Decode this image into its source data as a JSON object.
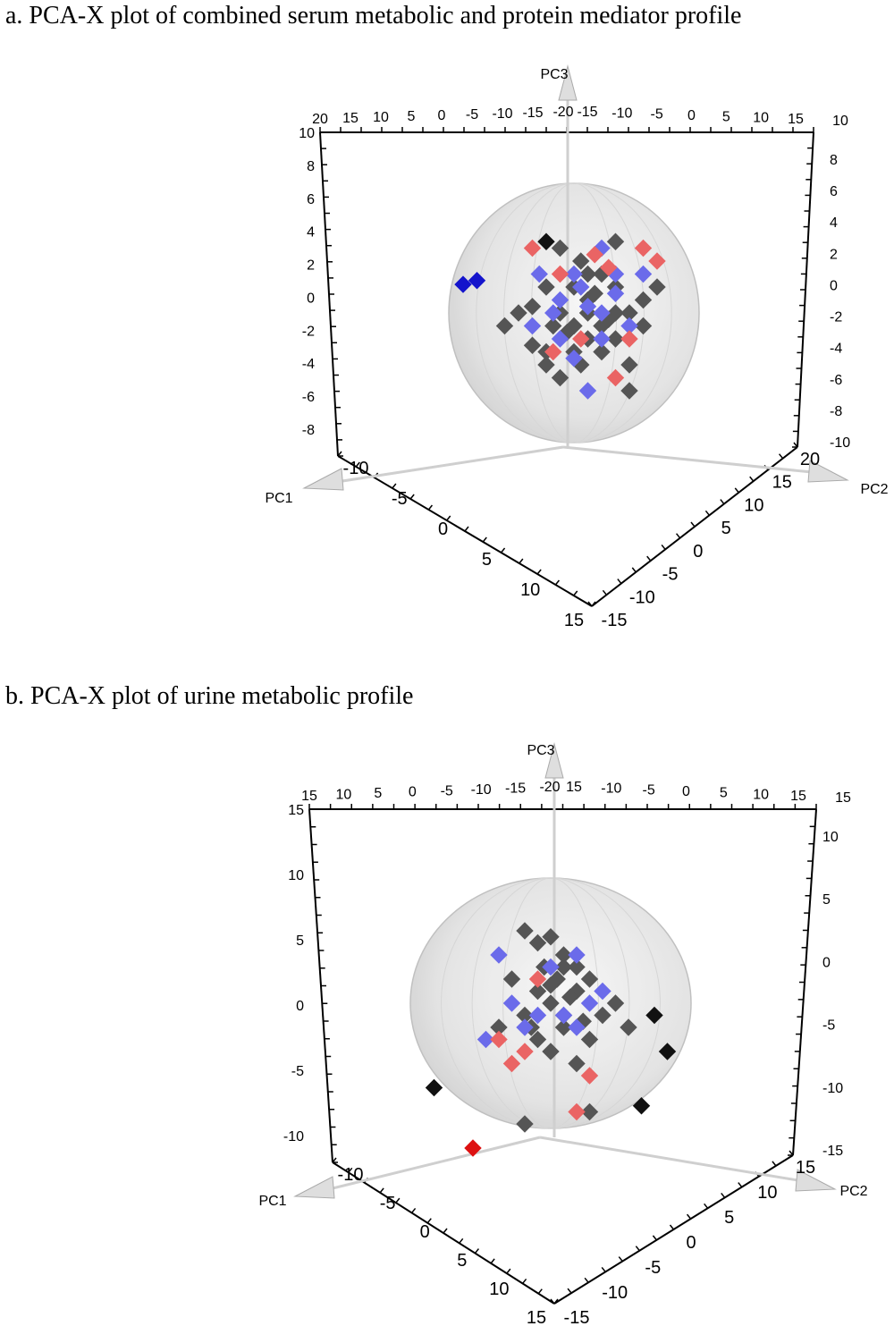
{
  "panels": {
    "a": {
      "title": "a. PCA-X plot of combined serum metabolic and protein mediator profile"
    },
    "b": {
      "title": "b. PCA-X plot of urine metabolic profile"
    }
  },
  "colors": {
    "group_gray": "#555555",
    "group_blue": "#6b6bea",
    "group_red": "#ea6464",
    "outlier_black": "#111111",
    "outlier_blue": "#1414cc",
    "outlier_red": "#dd1111",
    "ellipse_fill": "#e6e6e6",
    "axis_arrow": "#dcdcdc"
  },
  "chart_data": [
    {
      "type": "scatter",
      "panel": "a",
      "title": "PCA-X plot of combined serum metabolic and protein mediator profile",
      "axes": {
        "pc1": "PC1",
        "pc2": "PC2",
        "pc3": "PC3"
      },
      "top_left_ticks": [
        "20",
        "15",
        "10",
        "5",
        "0",
        "-5",
        "-10",
        "-15",
        "-20"
      ],
      "top_right_ticks": [
        "-15",
        "-10",
        "-5",
        "0",
        "5",
        "10",
        "15"
      ],
      "top_right_corner": "10",
      "left_ticks": [
        "10",
        "8",
        "6",
        "4",
        "2",
        "0",
        "-2",
        "-4",
        "-6",
        "-8"
      ],
      "right_ticks": [
        "8",
        "6",
        "4",
        "2",
        "0",
        "-2",
        "-4",
        "-6",
        "-8",
        "-10"
      ],
      "pc1_ticks": [
        "-10",
        "-5",
        "0",
        "5",
        "10",
        "15"
      ],
      "pc2_ticks": [
        "-15",
        "-10",
        "-5",
        "0",
        "5",
        "10",
        "15",
        "20"
      ],
      "note": "",
      "series": [
        {
          "color_key": "group_gray",
          "points": [
            [
              -1,
              5
            ],
            [
              0.5,
              4
            ],
            [
              3,
              5.5
            ],
            [
              1,
              3
            ],
            [
              -4,
              0
            ],
            [
              -5,
              -1
            ],
            [
              -3,
              0.5
            ],
            [
              -2,
              2
            ],
            [
              -1.5,
              -1
            ],
            [
              -2,
              -3
            ],
            [
              -1,
              -5
            ],
            [
              0,
              -1
            ],
            [
              1,
              0
            ],
            [
              1,
              -2
            ],
            [
              2,
              -1
            ],
            [
              2,
              -3
            ],
            [
              3,
              2
            ],
            [
              3,
              0
            ],
            [
              3,
              -2
            ],
            [
              4,
              -4
            ],
            [
              5,
              1
            ],
            [
              5,
              -1
            ],
            [
              6,
              2
            ],
            [
              -2,
              -4
            ],
            [
              0,
              -3
            ],
            [
              4,
              -6
            ],
            [
              1,
              1
            ],
            [
              -1,
              0
            ],
            [
              0,
              2
            ],
            [
              2,
              3
            ],
            [
              1.5,
              1.5
            ],
            [
              -0.5,
              -1.5
            ],
            [
              2.5,
              -0.5
            ],
            [
              0.5,
              -4
            ],
            [
              -3,
              -2.5
            ],
            [
              4,
              0
            ]
          ]
        },
        {
          "color_key": "group_blue",
          "points": [
            [
              0,
              3
            ],
            [
              2,
              5
            ],
            [
              -2.5,
              3
            ],
            [
              -1,
              1
            ],
            [
              1,
              0.5
            ],
            [
              3,
              3
            ],
            [
              -3,
              -1
            ],
            [
              2,
              -2
            ],
            [
              0,
              -3.5
            ],
            [
              4,
              -1
            ],
            [
              3,
              1.5
            ],
            [
              -1,
              -2
            ],
            [
              5,
              3
            ],
            [
              1,
              -6
            ],
            [
              2,
              0
            ],
            [
              0.5,
              2
            ],
            [
              -1.5,
              0
            ]
          ]
        },
        {
          "color_key": "group_red",
          "points": [
            [
              -3,
              5
            ],
            [
              -1,
              3
            ],
            [
              1.5,
              4.5
            ],
            [
              5,
              5
            ],
            [
              6,
              4
            ],
            [
              -1.5,
              -3
            ],
            [
              0.5,
              -2
            ],
            [
              4,
              -2
            ],
            [
              3,
              -5
            ],
            [
              2.5,
              3.5
            ]
          ]
        },
        {
          "color_key": "outlier_blue",
          "points": [
            [
              -8,
              2.2
            ],
            [
              -7,
              2.5
            ]
          ]
        },
        {
          "color_key": "outlier_black",
          "points": [
            [
              -2,
              5.5
            ]
          ]
        }
      ]
    },
    {
      "type": "scatter",
      "panel": "b",
      "title": "PCA-X plot of urine metabolic profile",
      "axes": {
        "pc1": "PC1",
        "pc2": "PC2",
        "pc3": "PC3"
      },
      "top_left_ticks": [
        "15",
        "10",
        "5",
        "0",
        "-5",
        "-10",
        "-15",
        "-20"
      ],
      "top_right_ticks": [
        "15",
        "-10",
        "-5",
        "0",
        "5",
        "10",
        "15"
      ],
      "top_right_corner": "15",
      "left_ticks": [
        "15",
        "10",
        "5",
        "0",
        "-5",
        "-10"
      ],
      "right_ticks": [
        "10",
        "5",
        "0",
        "-5",
        "-10",
        "-15"
      ],
      "pc1_ticks": [
        "-10",
        "-5",
        "0",
        "5",
        "10",
        "15"
      ],
      "pc2_ticks": [
        "-15",
        "-10",
        "-5",
        "0",
        "5",
        "10",
        "15"
      ],
      "note": "",
      "series": [
        {
          "color_key": "group_gray",
          "points": [
            [
              -2,
              6
            ],
            [
              -1,
              5
            ],
            [
              0,
              5.5
            ],
            [
              1,
              4
            ],
            [
              2,
              3
            ],
            [
              -3,
              2
            ],
            [
              -1,
              1
            ],
            [
              0,
              0
            ],
            [
              1,
              -1
            ],
            [
              2,
              1
            ],
            [
              3,
              2
            ],
            [
              4,
              -1
            ],
            [
              5,
              0
            ],
            [
              -2,
              -1
            ],
            [
              -1,
              -3
            ],
            [
              0,
              -4
            ],
            [
              1,
              -2
            ],
            [
              2,
              -5
            ],
            [
              3,
              -3
            ],
            [
              -4,
              -2
            ],
            [
              6,
              -2
            ],
            [
              3,
              -9
            ],
            [
              -2,
              -10
            ],
            [
              0.5,
              2
            ],
            [
              1.5,
              0.5
            ],
            [
              -0.5,
              3
            ],
            [
              2.5,
              -1.5
            ],
            [
              -1.5,
              -2
            ],
            [
              0,
              1.5
            ],
            [
              1,
              3
            ]
          ]
        },
        {
          "color_key": "group_blue",
          "points": [
            [
              -4,
              4
            ],
            [
              -3,
              0
            ],
            [
              -2,
              -2
            ],
            [
              1,
              -1
            ],
            [
              3,
              0
            ],
            [
              -5,
              -3
            ],
            [
              2,
              -2
            ],
            [
              0,
              3
            ],
            [
              4,
              1
            ],
            [
              -1,
              -1
            ],
            [
              2,
              4
            ]
          ]
        },
        {
          "color_key": "group_red",
          "points": [
            [
              -1,
              2
            ],
            [
              -4,
              -3
            ],
            [
              -2,
              -4
            ],
            [
              3,
              -6
            ],
            [
              -3,
              -5
            ],
            [
              2,
              -9
            ]
          ]
        },
        {
          "color_key": "outlier_black",
          "points": [
            [
              8,
              -1
            ],
            [
              9,
              -4
            ],
            [
              -9,
              -7
            ],
            [
              7,
              -8.5
            ]
          ]
        },
        {
          "color_key": "outlier_red",
          "points": [
            [
              -6,
              -12
            ]
          ]
        }
      ]
    }
  ]
}
